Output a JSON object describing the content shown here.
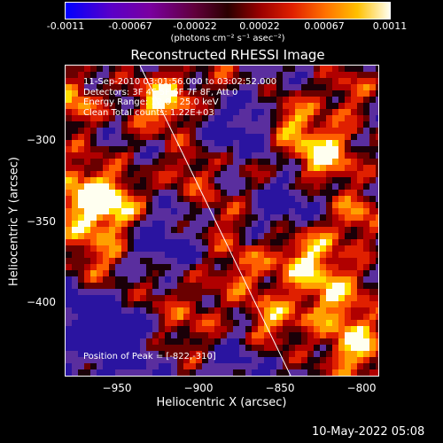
{
  "colorbar": {
    "ticks": [
      "-0.0011",
      "-0.00067",
      "-0.00022",
      "0.00022",
      "0.00067",
      "0.0011"
    ],
    "unit": "(photons cm⁻² s⁻¹ asec⁻²)",
    "colors": [
      "#0000ff",
      "#7a00a0",
      "#2a0000",
      "#e02000",
      "#ffc000",
      "#fffff0"
    ]
  },
  "title": "Reconstructed RHESSI Image",
  "annotations": {
    "time": "11-Sep-2010 03:01:56.000 to 03:02:52.000",
    "detectors": "Detectors: 3F 4F 5F 6F 7F 8F, Att 0",
    "energy": "Energy Range: 12.0 - 25.0 keV",
    "clean": "Clean     Total counts: 1.22E+03",
    "peak": "Position of Peak = [-822,-310]"
  },
  "axes": {
    "xlabel": "Heliocentric X (arcsec)",
    "ylabel": "Heliocentric Y (arcsec)",
    "xticks": [
      "−950",
      "−900",
      "−850",
      "−800"
    ],
    "yticks": [
      "−300",
      "−350",
      "−400"
    ],
    "xrange": [
      -978,
      -788
    ],
    "yrange": [
      -450,
      -263
    ]
  },
  "footer_date": "10-May-2022 05:08",
  "palette": {
    "background": "#000000",
    "purple": "#5a2e9e",
    "red": "#e02000",
    "yellow": "#ffe000"
  }
}
